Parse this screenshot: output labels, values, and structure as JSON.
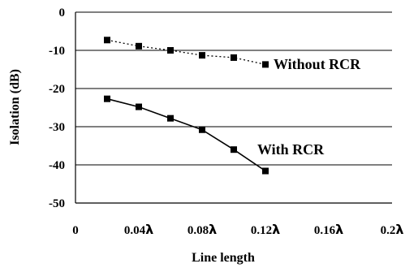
{
  "chart_data": {
    "type": "line",
    "xlabel": "Line length",
    "ylabel": "Isolation (dB)",
    "xlim": [
      0,
      0.2
    ],
    "ylim": [
      -50,
      0
    ],
    "grid": "horizontal",
    "x_ticks": [
      {
        "value": 0,
        "num": "0",
        "unit": ""
      },
      {
        "value": 0.04,
        "num": "0.04",
        "unit": "λ"
      },
      {
        "value": 0.08,
        "num": "0.08",
        "unit": "λ"
      },
      {
        "value": 0.12,
        "num": "0.12",
        "unit": "λ"
      },
      {
        "value": 0.16,
        "num": "0.16",
        "unit": "λ"
      },
      {
        "value": 0.2,
        "num": "0.2",
        "unit": "λ"
      }
    ],
    "y_ticks": [
      0,
      -10,
      -20,
      -30,
      -40,
      -50
    ],
    "series": [
      {
        "name": "Without RCR",
        "style": "dotted",
        "x": [
          0.02,
          0.04,
          0.06,
          0.08,
          0.1,
          0.12
        ],
        "y": [
          -7.3,
          -8.9,
          -10.0,
          -11.3,
          -11.9,
          -13.7
        ]
      },
      {
        "name": "With RCR",
        "style": "solid",
        "x": [
          0.02,
          0.04,
          0.06,
          0.08,
          0.1,
          0.12
        ],
        "y": [
          -22.7,
          -24.8,
          -27.8,
          -30.8,
          -36.0,
          -41.6
        ]
      }
    ],
    "colors": {
      "line": "#000000",
      "marker": "#000000",
      "grid": "#000000"
    }
  }
}
